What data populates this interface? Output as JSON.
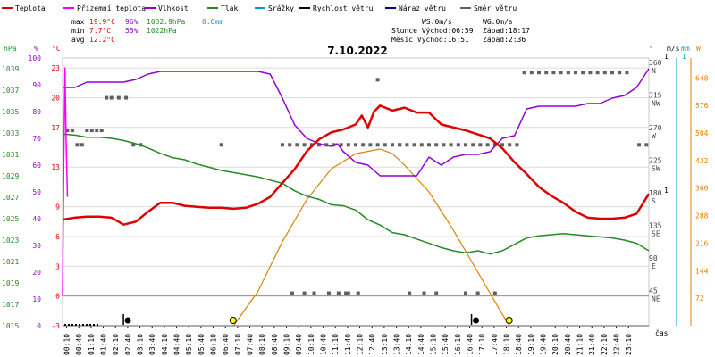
{
  "chart_data": {
    "type": "line",
    "title": "7.10.2022",
    "legend": [
      {
        "label": "Teplota",
        "color": "#e00000"
      },
      {
        "label": "Přízemní teplota",
        "color": "#ff00ff"
      },
      {
        "label": "Vlhkost",
        "color": "#9400d3"
      },
      {
        "label": "Tlak",
        "color": "#228b22"
      },
      {
        "label": "Srážky",
        "color": "#00a0d0"
      },
      {
        "label": "Rychlost větru",
        "color": "#000000"
      },
      {
        "label": "Náraz větru",
        "color": "#00008b"
      },
      {
        "label": "Směr větru",
        "color": "#606060"
      }
    ],
    "stats": {
      "max_label": "max",
      "max_temp": "19.9°C",
      "max_hum": "96%",
      "max_press": "1032.9hPa",
      "max_rain": "0.0mm",
      "min_label": "min",
      "min_temp": "7.7°C",
      "min_hum": "55%",
      "min_press": "1022hPa",
      "avg_label": "avg",
      "avg_temp": "12.2°C",
      "ws": "WS:0m/s",
      "wg": "WG:0m/s",
      "sun_rise": "Slunce Východ:06:59",
      "sun_set": "Západ:18:17",
      "moon_rise": "Měsíc  Východ:16:51",
      "moon_set": "Západ:2:36"
    },
    "axis_units": {
      "hpa": "hPa",
      "pct": "%",
      "celsius": "°C",
      "deg": "°",
      "ms": "m/s",
      "mm": "mm",
      "wm2": "W",
      "time": "čas"
    },
    "left_axes": {
      "hpa": [
        "1039",
        "1037",
        "1035",
        "1033",
        "1031",
        "1029",
        "1027",
        "1025",
        "1023",
        "1021",
        "1019",
        "1017",
        "1015"
      ],
      "pct": [
        "100",
        "90",
        "80",
        "70",
        "60",
        "50",
        "40",
        "30",
        "20",
        "10",
        "0"
      ],
      "celsius": [
        "23",
        "20",
        "17",
        "13",
        "9",
        "6",
        "3",
        "0",
        "-3"
      ]
    },
    "right_axes": {
      "deg": [
        {
          "v": "360",
          "c": "N"
        },
        {
          "v": "315",
          "c": "NW"
        },
        {
          "v": "270",
          "c": "W"
        },
        {
          "v": "225",
          "c": "SW"
        },
        {
          "v": "180",
          "c": "S"
        },
        {
          "v": "135",
          "c": "SE"
        },
        {
          "v": "90",
          "c": "E"
        },
        {
          "v": "45",
          "c": "NE"
        }
      ],
      "ms": [
        "1",
        "0"
      ],
      "mm": [
        "1"
      ],
      "wm2": [
        "648",
        "576",
        "504",
        "432",
        "360",
        "288",
        "216",
        "144",
        "72"
      ]
    },
    "x_ticks": [
      "00:10",
      "00:40",
      "01:10",
      "01:40",
      "02:10",
      "02:40",
      "03:10",
      "03:40",
      "04:10",
      "04:40",
      "05:10",
      "05:40",
      "06:10",
      "06:40",
      "07:10",
      "07:40",
      "08:10",
      "08:40",
      "09:10",
      "09:40",
      "10:10",
      "10:40",
      "11:10",
      "11:40",
      "12:10",
      "12:40",
      "13:10",
      "13:40",
      "14:10",
      "14:40",
      "15:10",
      "15:40",
      "16:10",
      "16:40",
      "17:10",
      "17:40",
      "18:10",
      "18:40",
      "19:10",
      "19:40",
      "20:10",
      "20:40",
      "21:10",
      "21:40",
      "22:10",
      "22:40",
      "23:10"
    ],
    "ylim_temp": [
      -3,
      24
    ],
    "ylim_hum": [
      0,
      100
    ],
    "ylim_press": [
      1015,
      1040
    ],
    "ylim_dir": [
      0,
      370
    ],
    "ylim_solar": [
      0,
      700
    ],
    "series": [
      {
        "key": "temp",
        "color": "#e00000",
        "x": [
          0,
          0.5,
          1,
          1.5,
          2,
          2.5,
          3,
          3.5,
          4,
          4.5,
          5,
          5.5,
          6,
          6.5,
          7,
          7.5,
          8,
          8.5,
          9,
          9.5,
          10,
          10.5,
          11,
          11.5,
          12,
          12.25,
          12.5,
          12.75,
          13,
          13.5,
          14,
          14.5,
          15,
          15.5,
          16,
          16.5,
          17,
          17.5,
          18,
          18.5,
          19,
          19.5,
          20,
          20.5,
          21,
          21.5,
          22,
          22.5,
          23,
          23.5,
          24
        ],
        "y": [
          7.7,
          7.9,
          8.0,
          8.0,
          7.9,
          7.2,
          7.5,
          8.5,
          9.4,
          9.4,
          9.1,
          9.0,
          8.9,
          8.9,
          8.8,
          8.9,
          9.3,
          10.0,
          11.4,
          12.8,
          14.6,
          15.8,
          16.5,
          16.8,
          17.3,
          18.2,
          17.0,
          18.6,
          19.2,
          18.7,
          19.0,
          18.5,
          18.5,
          17.3,
          17.0,
          16.7,
          16.3,
          15.9,
          14.9,
          13.5,
          12.3,
          11.0,
          10.1,
          9.4,
          8.5,
          7.9,
          7.8,
          7.8,
          7.9,
          8.3,
          10.3
        ]
      },
      {
        "key": "hum",
        "color": "#9400d3",
        "x": [
          0,
          0.5,
          1,
          1.5,
          2,
          2.5,
          3,
          3.5,
          4,
          4.5,
          5,
          5.5,
          6,
          6.5,
          7,
          7.5,
          8,
          8.5,
          9,
          9.5,
          10,
          10.5,
          11,
          11.25,
          11.5,
          11.75,
          12,
          12.5,
          13,
          13.5,
          14,
          14.5,
          15,
          15.5,
          16,
          16.5,
          17,
          17.5,
          18,
          18.5,
          19,
          19.5,
          20,
          20.5,
          21,
          21.5,
          22,
          22.5,
          23,
          23.5,
          24
        ],
        "y": [
          89,
          89,
          91,
          91,
          91,
          91,
          92,
          94,
          95,
          95,
          95,
          95,
          95,
          95,
          95,
          95,
          95,
          94,
          85,
          75,
          70,
          68,
          67,
          68,
          65,
          63,
          61,
          60,
          56,
          56,
          56,
          56,
          63,
          60,
          63,
          64,
          64,
          65,
          70,
          71,
          81,
          82,
          82,
          82,
          82,
          83,
          83,
          85,
          86,
          89,
          96
        ]
      },
      {
        "key": "press",
        "color": "#228b22",
        "x": [
          0,
          0.5,
          1,
          1.5,
          2,
          2.5,
          3,
          3.5,
          4,
          4.5,
          5,
          5.5,
          6,
          6.5,
          7,
          7.5,
          8,
          8.5,
          9,
          9.5,
          10,
          10.5,
          11,
          11.5,
          12,
          12.5,
          13,
          13.5,
          14,
          14.5,
          15,
          15.5,
          16,
          16.5,
          17,
          17.5,
          18,
          18.5,
          19,
          19.5,
          20,
          20.5,
          21,
          21.5,
          22,
          22.5,
          23,
          23.5,
          24
        ],
        "y": [
          1032.9,
          1032.8,
          1032.6,
          1032.6,
          1032.5,
          1032.3,
          1032.0,
          1031.6,
          1031.1,
          1030.7,
          1030.5,
          1030.1,
          1029.8,
          1029.5,
          1029.3,
          1029.1,
          1028.9,
          1028.6,
          1028.3,
          1027.6,
          1027.1,
          1026.8,
          1026.3,
          1026.2,
          1025.8,
          1024.9,
          1024.4,
          1023.7,
          1023.5,
          1023.1,
          1022.7,
          1022.3,
          1022.0,
          1021.8,
          1022.0,
          1021.7,
          1022.0,
          1022.6,
          1023.2,
          1023.4,
          1023.5,
          1023.6,
          1023.5,
          1023.4,
          1023.3,
          1023.2,
          1023.0,
          1022.7,
          1022.0
        ]
      },
      {
        "key": "ground",
        "color": "#ff00ff",
        "x": [
          0,
          0.05,
          0.1,
          0.15,
          0.2
        ],
        "y": [
          0.0,
          14.0,
          23.0,
          15.0,
          10.0
        ]
      },
      {
        "key": "solar",
        "color": "#e08000",
        "x": [
          7.0,
          8,
          9,
          10,
          11,
          12,
          13,
          13.5,
          14,
          15,
          16,
          17,
          18,
          18.3
        ],
        "y": [
          0,
          90,
          220,
          330,
          410,
          450,
          462,
          450,
          420,
          350,
          250,
          140,
          30,
          0
        ]
      }
    ],
    "wind_dir": {
      "x": [
        0.2,
        0.4,
        0.6,
        0.8,
        1,
        1.2,
        1.4,
        1.6,
        1.8,
        2,
        2.3,
        2.6,
        2.9,
        3.2,
        6.5,
        9.0,
        9.3,
        9.6,
        9.9,
        10.2,
        10.5,
        10.8,
        11.1,
        11.4,
        11.7,
        12.0,
        12.3,
        12.6,
        12.9,
        13.2,
        13.5,
        13.8,
        14.1,
        14.4,
        14.7,
        15.0,
        15.3,
        15.6,
        15.9,
        16.2,
        16.5,
        16.8,
        17.1,
        17.4,
        17.7,
        18.0,
        18.3,
        18.6,
        18.9,
        19.2,
        19.5,
        19.8,
        20.1,
        20.4,
        20.7,
        21.0,
        21.3,
        21.6,
        21.9,
        22.2,
        22.5,
        22.8,
        23.1,
        23.6,
        23.9,
        12.9,
        13.8,
        9.4,
        10.3,
        10.9,
        11.6,
        12.1,
        9.9,
        11.3,
        11.7,
        14.2,
        14.8,
        15.3,
        16.5,
        17.0,
        17.7
      ],
      "y": [
        270,
        270,
        250,
        250,
        270,
        270,
        270,
        270,
        315,
        315,
        315,
        315,
        250,
        250,
        250,
        250,
        250,
        250,
        250,
        250,
        250,
        250,
        250,
        250,
        250,
        250,
        250,
        250,
        250,
        250,
        250,
        250,
        250,
        250,
        250,
        250,
        250,
        250,
        250,
        250,
        250,
        250,
        250,
        250,
        250,
        250,
        250,
        250,
        350,
        350,
        350,
        350,
        350,
        350,
        350,
        350,
        350,
        350,
        350,
        350,
        350,
        350,
        350,
        250,
        250,
        340,
        250,
        45,
        45,
        45,
        45,
        45,
        45,
        45,
        45,
        45,
        45,
        45,
        45,
        45,
        45
      ]
    },
    "wind_speed": [
      0,
      0,
      0,
      0,
      0,
      0,
      0,
      0,
      0,
      0
    ],
    "sun_moon_x": {
      "moon_set": 2.6,
      "sun_rise": 6.98,
      "moon_rise": 16.85,
      "sun_set": 18.28
    }
  }
}
